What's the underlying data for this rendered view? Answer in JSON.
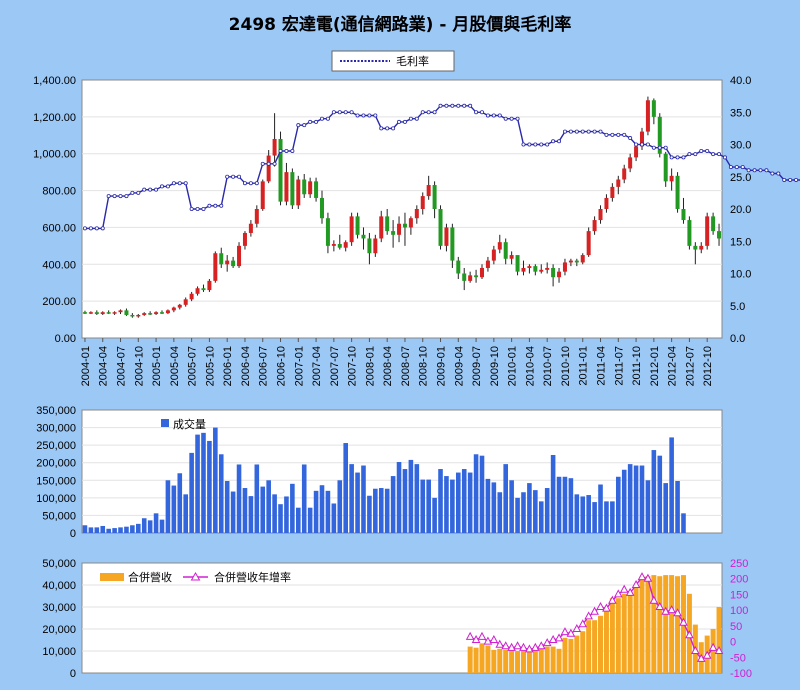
{
  "title": "2498 宏達電(通信網路業) - 月股價與毛利率",
  "colors": {
    "background": "#9cc8f6",
    "plot_bg": "#ffffff",
    "margin_line": "#2a2aa8",
    "volume_bar": "#3366dd",
    "revenue_bar": "#f5a623",
    "revenue_growth": "#d020d0",
    "candle_up": "#d62222",
    "candle_down": "#229922",
    "wick": "#222222"
  },
  "chart_data": [
    {
      "type": "line",
      "name": "price-and-margin",
      "series": [
        {
          "name": "毛利率",
          "axis": "right",
          "values": [
            17,
            17,
            17,
            17,
            22,
            22,
            22,
            22,
            22.5,
            22.5,
            23,
            23,
            23,
            23.5,
            23.5,
            24,
            24,
            24,
            20,
            20,
            20,
            20.5,
            20.5,
            20.5,
            25,
            25,
            25,
            24,
            24,
            24,
            27,
            27,
            27,
            29,
            29,
            29,
            33,
            33,
            33.5,
            33.5,
            34,
            34,
            35,
            35,
            35,
            35,
            34.5,
            34.5,
            34.5,
            34.5,
            32.5,
            32.5,
            32.5,
            33.5,
            33.5,
            34,
            34,
            35,
            35,
            35,
            36,
            36,
            36,
            36,
            36,
            36,
            35,
            35,
            34.5,
            34.5,
            34.5,
            34,
            34,
            34,
            30,
            30,
            30,
            30,
            30,
            30.5,
            30.5,
            32,
            32,
            32,
            32,
            32,
            32,
            32,
            31.5,
            31.5,
            31.5,
            31.5,
            31,
            30,
            30,
            30,
            29.5,
            29.5,
            29.5,
            28,
            28,
            28,
            28.5,
            28.5,
            29,
            29,
            28.5,
            28.5,
            28,
            26.5,
            26.5,
            26.5,
            26,
            26,
            26,
            26,
            25.5,
            25.5,
            24.5,
            24.5,
            24.5,
            24.5
          ]
        }
      ],
      "candles": [
        [
          140,
          148,
          130,
          135
        ],
        [
          135,
          145,
          130,
          140
        ],
        [
          140,
          150,
          125,
          130
        ],
        [
          130,
          145,
          125,
          140
        ],
        [
          140,
          150,
          130,
          135
        ],
        [
          135,
          145,
          125,
          140
        ],
        [
          140,
          155,
          130,
          150
        ],
        [
          150,
          160,
          120,
          125
        ],
        [
          125,
          135,
          110,
          120
        ],
        [
          120,
          130,
          110,
          125
        ],
        [
          125,
          140,
          120,
          135
        ],
        [
          135,
          145,
          125,
          130
        ],
        [
          130,
          145,
          125,
          140
        ],
        [
          140,
          150,
          130,
          135
        ],
        [
          135,
          155,
          130,
          150
        ],
        [
          150,
          170,
          140,
          165
        ],
        [
          165,
          185,
          155,
          180
        ],
        [
          180,
          220,
          170,
          210
        ],
        [
          210,
          250,
          200,
          240
        ],
        [
          240,
          280,
          230,
          270
        ],
        [
          270,
          290,
          250,
          260
        ],
        [
          260,
          320,
          250,
          310
        ],
        [
          310,
          470,
          300,
          460
        ],
        [
          460,
          490,
          380,
          400
        ],
        [
          400,
          450,
          360,
          420
        ],
        [
          420,
          440,
          380,
          390
        ],
        [
          390,
          520,
          380,
          500
        ],
        [
          500,
          580,
          480,
          570
        ],
        [
          570,
          640,
          550,
          620
        ],
        [
          620,
          720,
          600,
          700
        ],
        [
          700,
          860,
          690,
          850
        ],
        [
          850,
          1020,
          840,
          990
        ],
        [
          990,
          1220,
          930,
          1080
        ],
        [
          1080,
          1120,
          720,
          740
        ],
        [
          740,
          950,
          720,
          900
        ],
        [
          900,
          920,
          700,
          720
        ],
        [
          720,
          880,
          700,
          860
        ],
        [
          860,
          890,
          760,
          780
        ],
        [
          780,
          870,
          760,
          850
        ],
        [
          850,
          870,
          740,
          760
        ],
        [
          760,
          800,
          620,
          650
        ],
        [
          650,
          680,
          460,
          500
        ],
        [
          500,
          530,
          470,
          510
        ],
        [
          510,
          560,
          480,
          490
        ],
        [
          490,
          530,
          470,
          520
        ],
        [
          520,
          680,
          500,
          660
        ],
        [
          660,
          680,
          540,
          560
        ],
        [
          560,
          600,
          480,
          540
        ],
        [
          540,
          570,
          400,
          460
        ],
        [
          460,
          560,
          440,
          540
        ],
        [
          540,
          690,
          520,
          660
        ],
        [
          660,
          700,
          560,
          580
        ],
        [
          580,
          640,
          490,
          560
        ],
        [
          560,
          660,
          520,
          620
        ],
        [
          620,
          680,
          500,
          600
        ],
        [
          600,
          660,
          560,
          650
        ],
        [
          650,
          720,
          620,
          700
        ],
        [
          700,
          790,
          670,
          770
        ],
        [
          770,
          880,
          750,
          830
        ],
        [
          830,
          850,
          650,
          700
        ],
        [
          700,
          720,
          480,
          500
        ],
        [
          500,
          620,
          470,
          600
        ],
        [
          600,
          620,
          380,
          420
        ],
        [
          420,
          440,
          320,
          350
        ],
        [
          350,
          380,
          260,
          310
        ],
        [
          310,
          360,
          300,
          340
        ],
        [
          340,
          370,
          300,
          330
        ],
        [
          330,
          400,
          320,
          380
        ],
        [
          380,
          440,
          360,
          420
        ],
        [
          420,
          500,
          400,
          480
        ],
        [
          480,
          560,
          460,
          520
        ],
        [
          520,
          540,
          400,
          430
        ],
        [
          430,
          470,
          400,
          450
        ],
        [
          450,
          440,
          340,
          360
        ],
        [
          360,
          420,
          340,
          380
        ],
        [
          380,
          400,
          350,
          390
        ],
        [
          390,
          400,
          340,
          360
        ],
        [
          360,
          400,
          350,
          370
        ],
        [
          370,
          410,
          350,
          380
        ],
        [
          380,
          400,
          280,
          330
        ],
        [
          330,
          380,
          300,
          360
        ],
        [
          360,
          430,
          340,
          410
        ],
        [
          410,
          430,
          390,
          420
        ],
        [
          420,
          430,
          390,
          410
        ],
        [
          410,
          460,
          400,
          450
        ],
        [
          450,
          600,
          440,
          580
        ],
        [
          580,
          660,
          560,
          640
        ],
        [
          640,
          720,
          620,
          700
        ],
        [
          700,
          780,
          680,
          760
        ],
        [
          760,
          840,
          740,
          820
        ],
        [
          820,
          880,
          780,
          860
        ],
        [
          860,
          940,
          840,
          920
        ],
        [
          920,
          1000,
          900,
          980
        ],
        [
          980,
          1060,
          960,
          1040
        ],
        [
          1040,
          1140,
          1020,
          1120
        ],
        [
          1120,
          1310,
          1100,
          1290
        ],
        [
          1290,
          1300,
          1160,
          1200
        ],
        [
          1200,
          1220,
          980,
          1000
        ],
        [
          1000,
          1010,
          820,
          850
        ],
        [
          850,
          920,
          800,
          880
        ],
        [
          880,
          900,
          680,
          700
        ],
        [
          700,
          760,
          620,
          640
        ],
        [
          640,
          660,
          480,
          500
        ],
        [
          500,
          520,
          400,
          480
        ],
        [
          480,
          520,
          460,
          500
        ],
        [
          500,
          680,
          480,
          660
        ],
        [
          660,
          680,
          560,
          580
        ],
        [
          580,
          620,
          500,
          540
        ]
      ],
      "xlabels": [
        "2004-01",
        "2004-04",
        "2004-07",
        "2004-10",
        "2005-01",
        "2005-04",
        "2005-07",
        "2005-10",
        "2006-01",
        "2006-04",
        "2006-07",
        "2006-10",
        "2007-01",
        "2007-04",
        "2007-07",
        "2007-10",
        "2008-01",
        "2008-04",
        "2008-07",
        "2008-10",
        "2009-01",
        "2009-04",
        "2009-07",
        "2009-10",
        "2010-01",
        "2010-04",
        "2010-07",
        "2010-10",
        "2011-01",
        "2011-04",
        "2011-07",
        "2011-10",
        "2012-01",
        "2012-04",
        "2012-07",
        "2012-10"
      ],
      "left_ticks": [
        "0.00",
        "200.00",
        "400.00",
        "600.00",
        "800.00",
        "1,000.00",
        "1,200.00",
        "1,400.00"
      ],
      "right_ticks": [
        "0.0",
        "5.0",
        "10.0",
        "15.0",
        "20.0",
        "25.0",
        "30.0",
        "35.0",
        "40.0"
      ],
      "ylim_left": [
        0,
        1400
      ],
      "ylim_right": [
        0,
        40
      ],
      "legend": "top-center"
    },
    {
      "type": "bar",
      "name": "volume",
      "series": [
        {
          "name": "成交量",
          "values": [
            22000,
            16000,
            16000,
            20000,
            12000,
            14000,
            16000,
            18000,
            22000,
            26000,
            42000,
            36000,
            56000,
            38000,
            150000,
            135000,
            170000,
            110000,
            228000,
            280000,
            285000,
            262000,
            300000,
            224000,
            148000,
            118000,
            195000,
            128000,
            105000,
            195000,
            132000,
            150000,
            110000,
            82000,
            104000,
            140000,
            72000,
            195000,
            72000,
            120000,
            136000,
            120000,
            84000,
            150000,
            256000,
            196000,
            172000,
            192000,
            106000,
            126000,
            128000,
            126000,
            162000,
            202000,
            182000,
            208000,
            196000,
            152000,
            152000,
            100000,
            182000,
            162000,
            152000,
            172000,
            182000,
            172000,
            224000,
            220000,
            154000,
            144000,
            116000,
            196000,
            150000,
            100000,
            116000,
            142000,
            122000,
            90000,
            128000,
            222000,
            160000,
            160000,
            156000,
            110000,
            104000,
            108000,
            88000,
            138000,
            90000,
            90000,
            160000,
            180000,
            196000,
            192000,
            192000,
            150000,
            236000,
            220000,
            142000,
            272000,
            148000,
            56000
          ]
        }
      ],
      "yticks": [
        "0",
        "50,000",
        "100,000",
        "150,000",
        "200,000",
        "250,000",
        "300,000",
        "350,000"
      ],
      "ylim": [
        0,
        350000
      ],
      "legend": "top-left"
    },
    {
      "type": "bar",
      "name": "revenue",
      "series": [
        {
          "name": "合併營收",
          "axis": "left",
          "values": [
            12000,
            11500,
            13500,
            12500,
            10500,
            11000,
            10500,
            10500,
            10000,
            10000,
            10500,
            11500,
            12500,
            12000,
            12000,
            11000,
            16000,
            15500,
            17000,
            19000,
            24000,
            24000,
            26000,
            29000,
            34000,
            34000,
            36000,
            37000,
            40000,
            44000,
            44000,
            44500,
            44000,
            44500,
            44500,
            44000,
            44500,
            36000,
            22000,
            14000,
            17000,
            20000,
            30000
          ]
        },
        {
          "name": "合併營收年增率",
          "axis": "right",
          "values": [
            15,
            5,
            15,
            0,
            5,
            -10,
            -15,
            -20,
            -15,
            -20,
            -25,
            -20,
            -15,
            -5,
            5,
            10,
            30,
            25,
            40,
            55,
            80,
            95,
            110,
            105,
            130,
            150,
            165,
            155,
            180,
            205,
            200,
            130,
            110,
            95,
            100,
            90,
            60,
            20,
            -30,
            -55,
            -45,
            -20,
            -30
          ]
        }
      ],
      "left_ticks": [
        "0",
        "10,000",
        "20,000",
        "30,000",
        "40,000",
        "50,000"
      ],
      "right_ticks": [
        "-100",
        "-50",
        "0",
        "50",
        "100",
        "150",
        "200",
        "250"
      ],
      "ylim_left": [
        0,
        50000
      ],
      "ylim_right": [
        -100,
        250
      ],
      "legend": "top-left"
    }
  ]
}
